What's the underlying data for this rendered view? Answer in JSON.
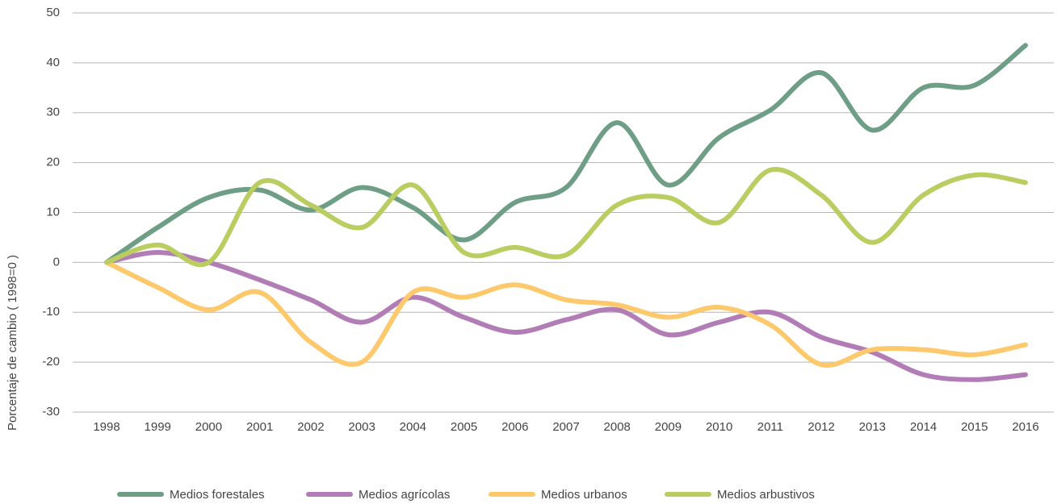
{
  "chart_data": {
    "type": "line",
    "y_label": "Porcentaje de cambio ( 1998=0 )",
    "categories": [
      "1998",
      "1999",
      "2000",
      "2001",
      "2002",
      "2003",
      "2004",
      "2005",
      "2006",
      "2007",
      "2008",
      "2009",
      "2010",
      "2011",
      "2012",
      "2013",
      "2014",
      "2015",
      "2016"
    ],
    "series": [
      {
        "name": "Medios forestales",
        "color": "#6e9e85",
        "values": [
          0,
          7,
          13,
          14.5,
          10.5,
          15,
          11,
          4.5,
          12,
          15,
          28,
          15.5,
          25,
          30.5,
          38,
          26.5,
          35,
          35.5,
          43.5
        ]
      },
      {
        "name": "Medios agrícolas",
        "color": "#b27db6",
        "values": [
          0,
          2,
          0,
          -3.5,
          -7.5,
          -12,
          -7,
          -11,
          -14,
          -11.5,
          -9.5,
          -14.5,
          -12,
          -10,
          -15,
          -18,
          -22.5,
          -23.5,
          -22.5
        ]
      },
      {
        "name": "Medios urbanos",
        "color": "#fdc96c",
        "values": [
          0,
          -5,
          -9.5,
          -6,
          -16,
          -20,
          -6,
          -7,
          -4.5,
          -7.5,
          -8.5,
          -11,
          -9,
          -12.5,
          -20.5,
          -17.5,
          -17.5,
          -18.5,
          -16.5
        ]
      },
      {
        "name": "Medios arbustivos",
        "color": "#b9cd60",
        "values": [
          0,
          3.5,
          0,
          16,
          11.5,
          7,
          15.5,
          2,
          3,
          1.5,
          11.5,
          13,
          8,
          18.5,
          13.5,
          4,
          13.5,
          17.5,
          16
        ]
      }
    ],
    "ylim": [
      -30,
      50
    ],
    "yticks": [
      -30,
      -20,
      -10,
      0,
      10,
      20,
      30,
      40,
      50
    ],
    "grid": true,
    "legend": "bottom"
  }
}
